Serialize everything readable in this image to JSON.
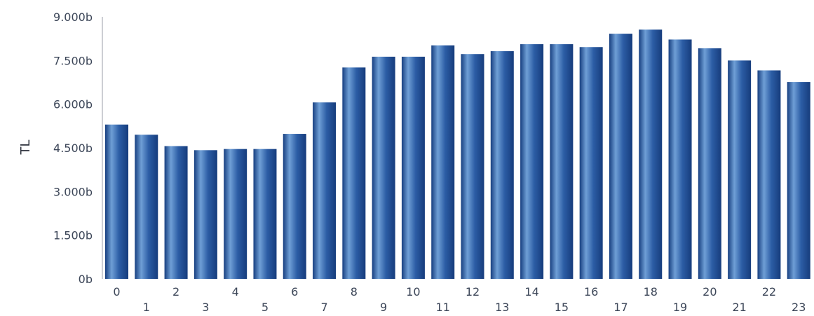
{
  "chart_data": {
    "type": "bar",
    "title": "",
    "xlabel": "",
    "ylabel": "TL",
    "ylim": [
      0,
      9000
    ],
    "y_ticks": [
      {
        "value": 0,
        "label": "0b"
      },
      {
        "value": 1500,
        "label": "1.500b"
      },
      {
        "value": 3000,
        "label": "3.000b"
      },
      {
        "value": 4500,
        "label": "4.500b"
      },
      {
        "value": 6000,
        "label": "6.000b"
      },
      {
        "value": 7500,
        "label": "7.500b"
      },
      {
        "value": 9000,
        "label": "9.000b"
      }
    ],
    "categories": [
      "0",
      "1",
      "2",
      "3",
      "4",
      "5",
      "6",
      "7",
      "8",
      "9",
      "10",
      "11",
      "12",
      "13",
      "14",
      "15",
      "16",
      "17",
      "18",
      "19",
      "20",
      "21",
      "22",
      "23"
    ],
    "values": [
      5300,
      4950,
      4560,
      4420,
      4460,
      4460,
      4980,
      6060,
      7260,
      7630,
      7630,
      8020,
      7720,
      7820,
      8060,
      8060,
      7960,
      8420,
      8560,
      8220,
      7920,
      7500,
      7160,
      6760
    ],
    "grid": false,
    "legend": "none",
    "bar_color": "#2a5a9f"
  }
}
